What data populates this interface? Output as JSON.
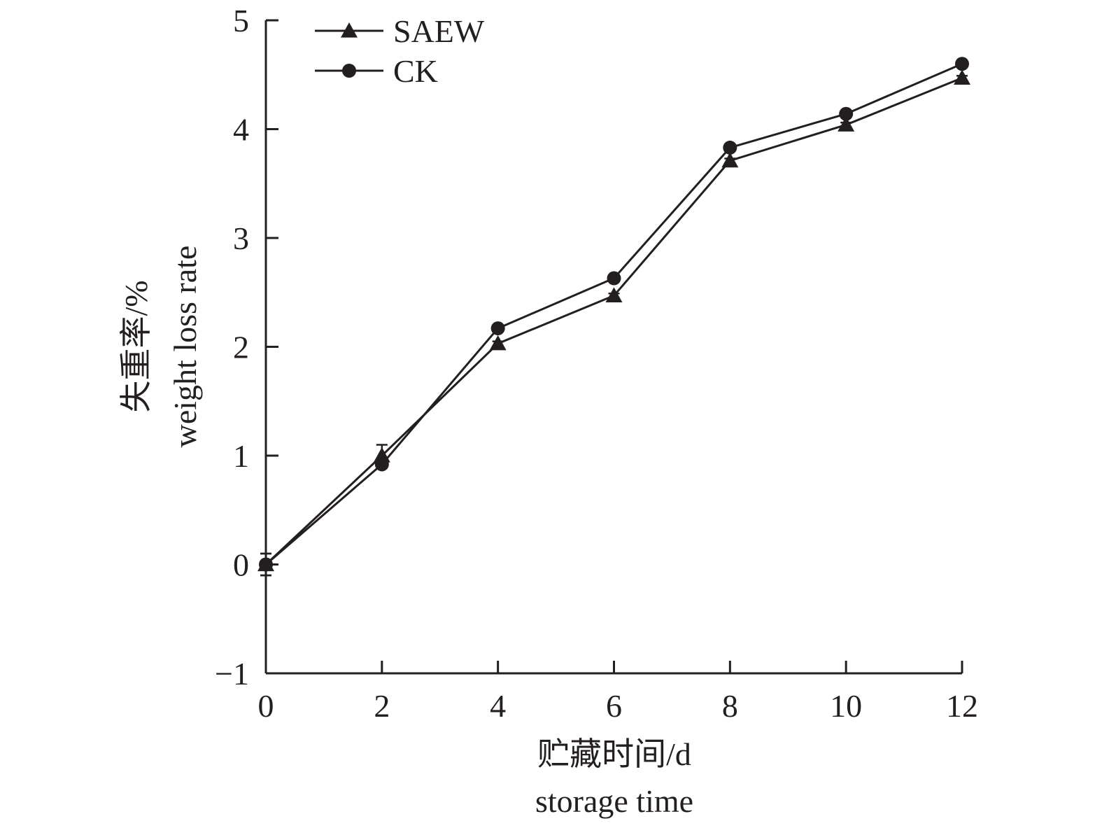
{
  "chart_data": {
    "type": "line",
    "x": [
      0,
      2,
      4,
      6,
      8,
      10,
      12
    ],
    "xlim": [
      0,
      12
    ],
    "ylim": [
      -1,
      5
    ],
    "xticks": [
      "0",
      "2",
      "4",
      "6",
      "8",
      "10",
      "12"
    ],
    "yticks": [
      "−1",
      "0",
      "1",
      "2",
      "3",
      "4",
      "5"
    ],
    "xlabel_cn": "贮藏时间/d",
    "xlabel_en": "storage time",
    "ylabel_cn": "失重率/%",
    "ylabel_en": "weight loss rate",
    "legend_position": "top-left",
    "grid": false,
    "series": [
      {
        "name": "SAEW",
        "marker": "triangle",
        "color": "#231f20",
        "values": [
          0.0,
          1.0,
          2.03,
          2.47,
          3.71,
          4.04,
          4.47
        ],
        "errors": [
          0.1,
          0.1,
          0.02,
          0.02,
          0.02,
          0.02,
          0.02
        ]
      },
      {
        "name": "CK",
        "marker": "circle",
        "color": "#231f20",
        "values": [
          0.0,
          0.92,
          2.17,
          2.63,
          3.83,
          4.14,
          4.6
        ],
        "errors": [
          0.1,
          0.02,
          0.02,
          0.02,
          0.03,
          0.02,
          0.02
        ]
      }
    ]
  }
}
